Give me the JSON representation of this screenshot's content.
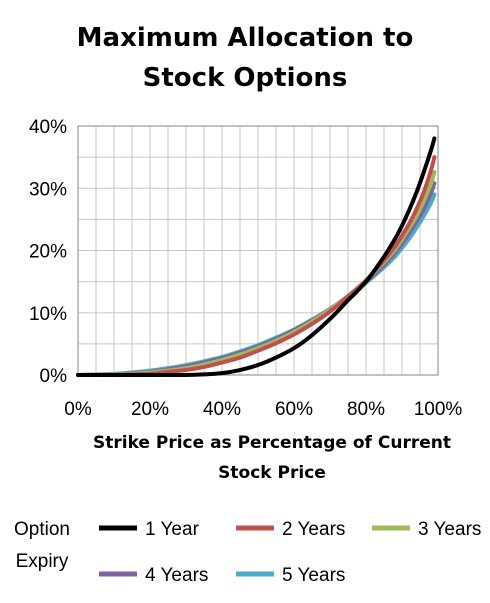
{
  "chart_data": {
    "type": "line",
    "title_lines": [
      "Maximum Allocation to",
      "Stock Options"
    ],
    "xlabel_lines": [
      "Strike Price as Percentage of Current",
      "Stock Price"
    ],
    "ylabel": "",
    "xlim": [
      0,
      100
    ],
    "ylim": [
      0,
      40
    ],
    "x_ticks": [
      "0%",
      "20%",
      "40%",
      "60%",
      "80%",
      "100%"
    ],
    "y_ticks": [
      "0%",
      "10%",
      "20%",
      "30%",
      "40%"
    ],
    "grid": true,
    "legend": {
      "title_lines": [
        "Option",
        "Expiry"
      ],
      "placement": "bottom"
    },
    "x": [
      0,
      10,
      15,
      20,
      25,
      30,
      35,
      40,
      45,
      50,
      55,
      60,
      65,
      70,
      75,
      80,
      85,
      88,
      90,
      92,
      94,
      96,
      98,
      99
    ],
    "series": [
      {
        "name": "1 Year",
        "color": "#000000",
        "values": [
          0,
          0,
          0,
          0,
          0,
          0,
          0.1,
          0.3,
          0.8,
          1.6,
          2.8,
          4.3,
          6.4,
          9.0,
          12.0,
          15.0,
          19.0,
          21.8,
          24.0,
          26.5,
          29.3,
          32.5,
          36.0,
          38.0
        ]
      },
      {
        "name": "2 Years",
        "color": "#c0504d",
        "values": [
          0,
          0,
          0.1,
          0.2,
          0.5,
          0.8,
          1.3,
          2.0,
          2.8,
          3.9,
          5.1,
          6.5,
          8.2,
          10.2,
          12.6,
          15.2,
          18.4,
          20.6,
          22.4,
          24.3,
          26.6,
          29.3,
          32.8,
          35.0
        ]
      },
      {
        "name": "3 Years",
        "color": "#9bbb59",
        "values": [
          0,
          0.1,
          0.2,
          0.4,
          0.7,
          1.1,
          1.7,
          2.4,
          3.3,
          4.3,
          5.5,
          6.9,
          8.6,
          10.5,
          12.7,
          15.2,
          18.1,
          20.1,
          21.8,
          23.6,
          25.5,
          27.9,
          30.7,
          32.6
        ]
      },
      {
        "name": "4 Years",
        "color": "#8064a2",
        "values": [
          0,
          0.1,
          0.3,
          0.5,
          0.9,
          1.4,
          2.0,
          2.7,
          3.6,
          4.6,
          5.8,
          7.2,
          8.8,
          10.6,
          12.7,
          15.0,
          17.7,
          19.6,
          21.1,
          22.8,
          24.6,
          26.6,
          29.1,
          30.8
        ]
      },
      {
        "name": "5 Years",
        "color": "#4bacc6",
        "values": [
          0,
          0.2,
          0.4,
          0.7,
          1.1,
          1.6,
          2.2,
          2.9,
          3.8,
          4.8,
          6.0,
          7.3,
          8.9,
          10.6,
          12.6,
          14.8,
          17.3,
          19.0,
          20.4,
          21.9,
          23.6,
          25.5,
          27.6,
          29.0
        ]
      }
    ]
  }
}
